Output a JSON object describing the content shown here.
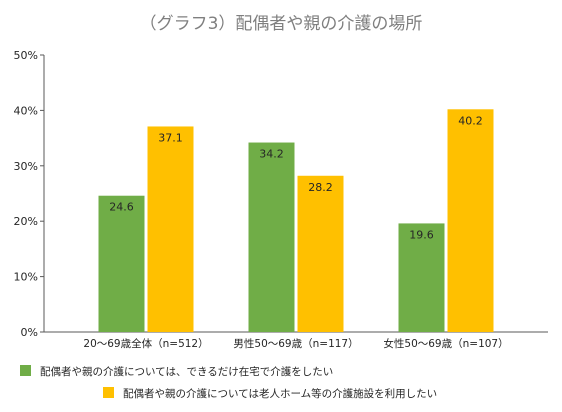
{
  "chart_data": {
    "type": "bar",
    "title": "（グラフ3）配偶者や親の介護の場所",
    "xlabel": "",
    "ylabel": "",
    "categories": [
      "20〜69歳全体（n=512）",
      "男性50〜69歳（n=117）",
      "女性50〜69歳（n=107）"
    ],
    "series": [
      {
        "name": "配偶者や親の介護については、できるだけ在宅で介護をしたい",
        "values": [
          24.6,
          34.2,
          19.6
        ],
        "color": "#70ad47"
      },
      {
        "name": "配偶者や親の介護については老人ホーム等の介護施設を利用したい",
        "values": [
          37.1,
          28.2,
          40.2
        ],
        "color": "#ffc000"
      }
    ],
    "yticks": [
      "0%",
      "10%",
      "20%",
      "30%",
      "40%",
      "50%"
    ],
    "ylim": [
      0,
      50
    ],
    "grid": false,
    "legend": "bottom-left"
  }
}
